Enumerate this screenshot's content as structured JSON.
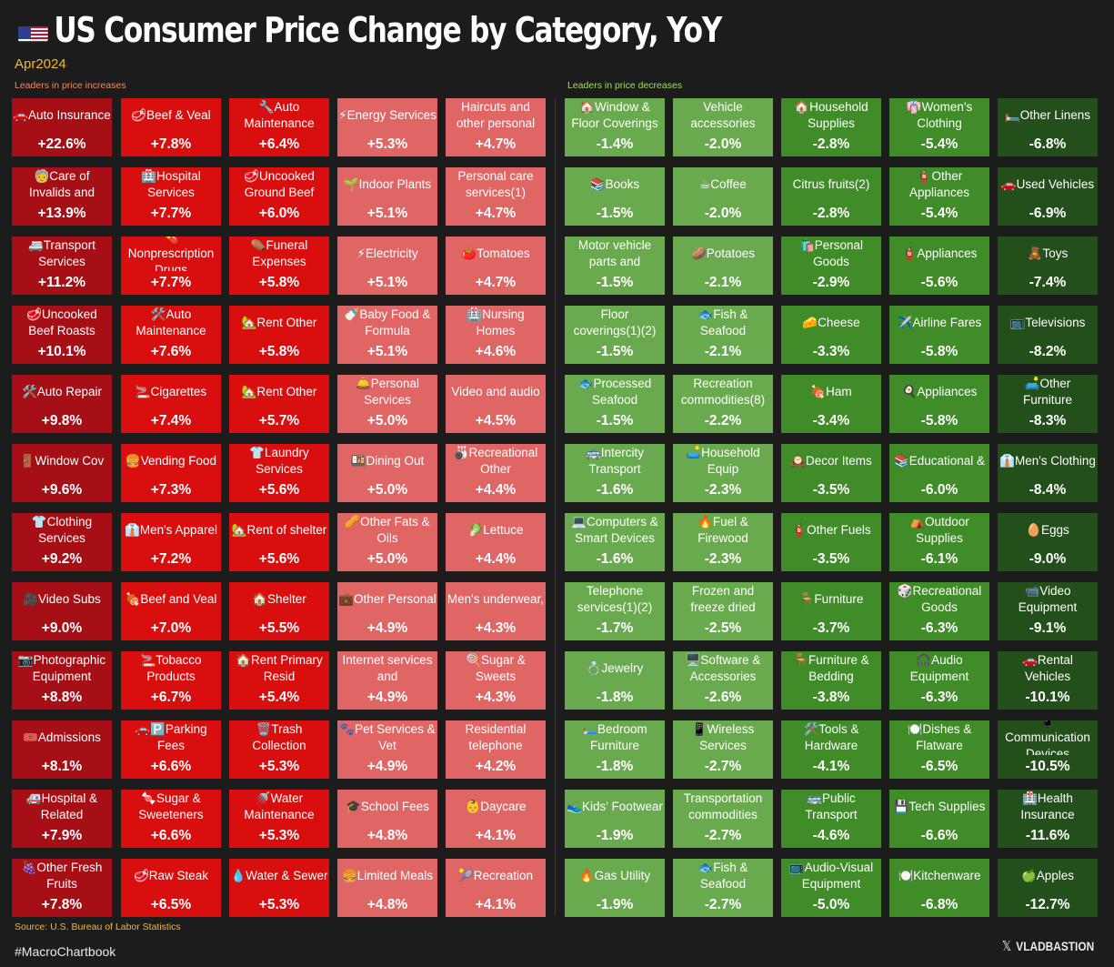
{
  "header": {
    "title": "US Consumer Price Change by Category, YoY",
    "subtitle": "Apr2024",
    "increases_label": "Leaders in price increases",
    "decreases_label": "Leaders in price decreases"
  },
  "footer": {
    "source": "Source: U.S. Bureau of Labor Statistics",
    "hashtag": "#MacroChartbook",
    "brand": "VLADBASTION"
  },
  "icons": {
    "flag": "us-flag-icon",
    "brand": "x-logo-icon"
  },
  "colors": {
    "background": "#1c1c1c",
    "increase_shades": [
      "#a50f15",
      "#d90f0f",
      "#e06666"
    ],
    "decrease_shades": [
      "#6aaa4e",
      "#3f8c28",
      "#23501a"
    ]
  },
  "chart_data": {
    "type": "heatmap",
    "title": "US Consumer Price Change by Category, YoY",
    "subtitle": "Apr2024",
    "unit": "% YoY",
    "columns": [
      {
        "group": "increase",
        "shade": 0,
        "items": [
          {
            "label": "🚗Auto Insurance",
            "value": "+22.6%"
          },
          {
            "label": "🧓Care of Invalids and",
            "value": "+13.9%"
          },
          {
            "label": "🚐Transport Services",
            "value": "+11.2%"
          },
          {
            "label": "🥩Uncooked Beef Roasts",
            "value": "+10.1%"
          },
          {
            "label": "🛠️Auto Repair",
            "value": "+9.8%"
          },
          {
            "label": "🚪Window Cov",
            "value": "+9.6%"
          },
          {
            "label": "👕Clothing Services",
            "value": "+9.2%"
          },
          {
            "label": "🎥Video Subs",
            "value": "+9.0%"
          },
          {
            "label": "📷Photographic Equipment",
            "value": "+8.8%"
          },
          {
            "label": "🎟️Admissions",
            "value": "+8.1%"
          },
          {
            "label": "🚑Hospital & Related",
            "value": "+7.9%"
          },
          {
            "label": "🍇Other Fresh Fruits",
            "value": "+7.8%"
          }
        ]
      },
      {
        "group": "increase",
        "shade": 1,
        "items": [
          {
            "label": "🥩Beef & Veal",
            "value": "+7.8%"
          },
          {
            "label": "🏥Hospital Services",
            "value": "+7.7%"
          },
          {
            "label": "💊Nonprescription Drugs",
            "value": "+7.7%"
          },
          {
            "label": "🛠️Auto Maintenance",
            "value": "+7.6%"
          },
          {
            "label": "🚬Cigarettes",
            "value": "+7.4%"
          },
          {
            "label": "🍔Vending Food",
            "value": "+7.3%"
          },
          {
            "label": "👔Men's Apparel",
            "value": "+7.2%"
          },
          {
            "label": "🍖Beef and Veal",
            "value": "+7.0%"
          },
          {
            "label": "🚬Tobacco Products",
            "value": "+6.7%"
          },
          {
            "label": "🚗🅿️Parking Fees",
            "value": "+6.6%"
          },
          {
            "label": "🍬Sugar & Sweeteners",
            "value": "+6.6%"
          },
          {
            "label": "🥩Raw Steak",
            "value": "+6.5%"
          }
        ]
      },
      {
        "group": "increase",
        "shade": 1,
        "items": [
          {
            "label": "🔧Auto Maintenance",
            "value": "+6.4%"
          },
          {
            "label": "🥩Uncooked Ground Beef",
            "value": "+6.0%"
          },
          {
            "label": "⚰️Funeral Expenses",
            "value": "+5.8%"
          },
          {
            "label": "🏡Rent Other",
            "value": "+5.8%"
          },
          {
            "label": "🏡Rent Other",
            "value": "+5.7%"
          },
          {
            "label": "👕Laundry Services",
            "value": "+5.6%"
          },
          {
            "label": "🏡Rent of shelter",
            "value": "+5.6%"
          },
          {
            "label": "🏠Shelter",
            "value": "+5.5%"
          },
          {
            "label": "🏠Rent Primary Resid",
            "value": "+5.4%"
          },
          {
            "label": "🗑️Trash Collection",
            "value": "+5.3%"
          },
          {
            "label": "🚿Water Maintenance",
            "value": "+5.3%"
          },
          {
            "label": "💧Water & Sewer",
            "value": "+5.3%"
          }
        ]
      },
      {
        "group": "increase",
        "shade": 2,
        "items": [
          {
            "label": "⚡Energy Services",
            "value": "+5.3%"
          },
          {
            "label": "🌱Indoor Plants",
            "value": "+5.1%"
          },
          {
            "label": "⚡Electricity",
            "value": "+5.1%"
          },
          {
            "label": "🍼Baby Food & Formula",
            "value": "+5.1%"
          },
          {
            "label": "🛎️Personal Services",
            "value": "+5.0%"
          },
          {
            "label": "🍱Dining Out",
            "value": "+5.0%"
          },
          {
            "label": "🥜Other Fats & Oils",
            "value": "+5.0%"
          },
          {
            "label": "💼Other Personal",
            "value": "+4.9%"
          },
          {
            "label": "Internet services and",
            "value": "+4.9%"
          },
          {
            "label": "🐾Pet Services & Vet",
            "value": "+4.9%"
          },
          {
            "label": "🎓School Fees",
            "value": "+4.8%"
          },
          {
            "label": "🍔Limited Meals",
            "value": "+4.8%"
          }
        ]
      },
      {
        "group": "increase",
        "shade": 2,
        "items": [
          {
            "label": "Haircuts and other personal",
            "value": "+4.7%"
          },
          {
            "label": "Personal care services(1)",
            "value": "+4.7%"
          },
          {
            "label": "🍅Tomatoes",
            "value": "+4.7%"
          },
          {
            "label": "🏥Nursing Homes",
            "value": "+4.6%"
          },
          {
            "label": "Video and audio",
            "value": "+4.5%"
          },
          {
            "label": "🎳Recreational Other",
            "value": "+4.4%"
          },
          {
            "label": "🥬Lettuce",
            "value": "+4.4%"
          },
          {
            "label": "Men's underwear,",
            "value": "+4.3%"
          },
          {
            "label": "🍭Sugar & Sweets",
            "value": "+4.3%"
          },
          {
            "label": "Residential telephone",
            "value": "+4.2%"
          },
          {
            "label": "👶Daycare",
            "value": "+4.1%"
          },
          {
            "label": "🎾Recreation",
            "value": "+4.1%"
          }
        ]
      },
      {
        "group": "decrease",
        "shade": 0,
        "items": [
          {
            "label": "🏠Window & Floor Coverings",
            "value": "-1.4%"
          },
          {
            "label": "📚Books",
            "value": "-1.5%"
          },
          {
            "label": "Motor vehicle parts and",
            "value": "-1.5%"
          },
          {
            "label": "Floor coverings(1)(2)",
            "value": "-1.5%"
          },
          {
            "label": "🐟Processed Seafood",
            "value": "-1.5%"
          },
          {
            "label": "🚌Intercity Transport",
            "value": "-1.6%"
          },
          {
            "label": "💻Computers & Smart Devices",
            "value": "-1.6%"
          },
          {
            "label": "Telephone services(1)(2)",
            "value": "-1.7%"
          },
          {
            "label": "💍Jewelry",
            "value": "-1.8%"
          },
          {
            "label": "🛏️Bedroom Furniture",
            "value": "-1.8%"
          },
          {
            "label": "👟Kids' Footwear",
            "value": "-1.9%"
          },
          {
            "label": "🔥Gas Utility",
            "value": "-1.9%"
          }
        ]
      },
      {
        "group": "decrease",
        "shade": 0,
        "items": [
          {
            "label": "Vehicle accessories",
            "value": "-2.0%"
          },
          {
            "label": "☕Coffee",
            "value": "-2.0%"
          },
          {
            "label": "🥔Potatoes",
            "value": "-2.1%"
          },
          {
            "label": "🐟Fish & Seafood",
            "value": "-2.1%"
          },
          {
            "label": "Recreation commodities(8)",
            "value": "-2.2%"
          },
          {
            "label": "🛋️Household Equip",
            "value": "-2.3%"
          },
          {
            "label": "🔥Fuel & Firewood",
            "value": "-2.3%"
          },
          {
            "label": "Frozen and freeze dried",
            "value": "-2.5%"
          },
          {
            "label": "🖥️Software & Accessories",
            "value": "-2.6%"
          },
          {
            "label": "📱Wireless Services",
            "value": "-2.7%"
          },
          {
            "label": "Transportation commodities",
            "value": "-2.7%"
          },
          {
            "label": "🐟Fish & Seafood",
            "value": "-2.7%"
          }
        ]
      },
      {
        "group": "decrease",
        "shade": 1,
        "items": [
          {
            "label": "🏠Household Supplies",
            "value": "-2.8%"
          },
          {
            "label": "Citrus fruits(2)",
            "value": "-2.8%"
          },
          {
            "label": "🛍️Personal Goods",
            "value": "-2.9%"
          },
          {
            "label": "🧀Cheese",
            "value": "-3.3%"
          },
          {
            "label": "🍖Ham",
            "value": "-3.4%"
          },
          {
            "label": "🕰️Decor Items",
            "value": "-3.5%"
          },
          {
            "label": "🧯Other Fuels",
            "value": "-3.5%"
          },
          {
            "label": "🪑Furniture",
            "value": "-3.7%"
          },
          {
            "label": "🪑Furniture & Bedding",
            "value": "-3.8%"
          },
          {
            "label": "🛠️Tools & Hardware",
            "value": "-4.1%"
          },
          {
            "label": "🚌Public Transport",
            "value": "-4.6%"
          },
          {
            "label": "📺Audio-Visual Equipment",
            "value": "-5.0%"
          }
        ]
      },
      {
        "group": "decrease",
        "shade": 1,
        "items": [
          {
            "label": "👘Women's Clothing",
            "value": "-5.4%"
          },
          {
            "label": "🧯Other Appliances",
            "value": "-5.4%"
          },
          {
            "label": "🧯Appliances",
            "value": "-5.6%"
          },
          {
            "label": "✈️Airline Fares",
            "value": "-5.8%"
          },
          {
            "label": "🍳Appliances",
            "value": "-5.8%"
          },
          {
            "label": "📚Educational &",
            "value": "-6.0%"
          },
          {
            "label": "⛺Outdoor Supplies",
            "value": "-6.1%"
          },
          {
            "label": "🎲Recreational Goods",
            "value": "-6.3%"
          },
          {
            "label": "🎧Audio Equipment",
            "value": "-6.3%"
          },
          {
            "label": "🍽️Dishes & Flatware",
            "value": "-6.5%"
          },
          {
            "label": "💾Tech Supplies",
            "value": "-6.6%"
          },
          {
            "label": "🍽️Kitchenware",
            "value": "-6.8%"
          }
        ]
      },
      {
        "group": "decrease",
        "shade": 2,
        "items": [
          {
            "label": "🛏️Other Linens",
            "value": "-6.8%"
          },
          {
            "label": "🚗Used Vehicles",
            "value": "-6.9%"
          },
          {
            "label": "🧸Toys",
            "value": "-7.4%"
          },
          {
            "label": "📺Televisions",
            "value": "-8.2%"
          },
          {
            "label": "🛋️Other Furniture",
            "value": "-8.3%"
          },
          {
            "label": "👔Men's Clothing",
            "value": "-8.4%"
          },
          {
            "label": "🥚Eggs",
            "value": "-9.0%"
          },
          {
            "label": "📹Video Equipment",
            "value": "-9.1%"
          },
          {
            "label": "🚗Rental Vehicles",
            "value": "-10.1%"
          },
          {
            "label": "📱Communication Devices",
            "value": "-10.5%"
          },
          {
            "label": "🏥Health Insurance",
            "value": "-11.6%"
          },
          {
            "label": "🍏Apples",
            "value": "-12.7%"
          }
        ]
      }
    ]
  }
}
